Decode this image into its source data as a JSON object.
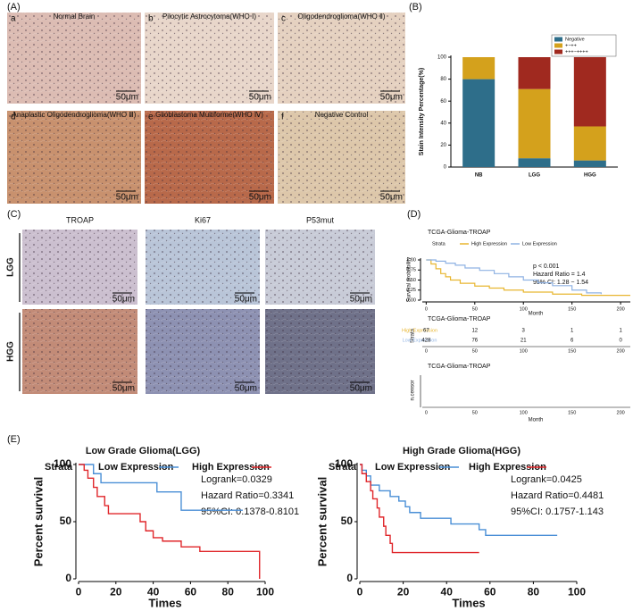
{
  "panel_labels": [
    "(A)",
    "(B)",
    "(C)",
    "(D)",
    "(E)"
  ],
  "panel_a": [
    {
      "letter": "a",
      "title": "Normal Brain",
      "scale": "50μm"
    },
    {
      "letter": "b",
      "title": "Pilocytic Astrocytoma(WHO Ⅰ)",
      "scale": "50μm"
    },
    {
      "letter": "c",
      "title": "Oligodendroglioma(WHO Ⅱ)",
      "scale": "50μm"
    },
    {
      "letter": "d",
      "title": "Anaplastic Oligodendroglioma(WHO Ⅲ)",
      "scale": "50μm"
    },
    {
      "letter": "e",
      "title": "Glioblastoma Multiforme(WHO Ⅳ)",
      "scale": "50μm"
    },
    {
      "letter": "f",
      "title": "Negative Control",
      "scale": "50μm"
    }
  ],
  "panel_c": {
    "columns": [
      "TROAP",
      "Ki67",
      "P53mut"
    ],
    "rows": [
      "LGG",
      "HGG"
    ],
    "scales": [
      [
        "50μm",
        "50μm",
        "50μm"
      ],
      [
        "50μm",
        "50μm",
        "50μm"
      ]
    ]
  },
  "chart_data": [
    {
      "type": "stacked_bar",
      "ylabel": "Stain Intensity Percentage(%)",
      "categories": [
        "NB",
        "LGG",
        "HGG"
      ],
      "series": [
        {
          "name": "Negative",
          "color": "#2e6e8a",
          "values": [
            80,
            8,
            6
          ]
        },
        {
          "name": "+~++",
          "color": "#d4a11c",
          "values": [
            20,
            63,
            31
          ]
        },
        {
          "name": "+++~++++",
          "color": "#a0291f",
          "values": [
            0,
            29,
            63
          ]
        }
      ],
      "ylim": [
        0,
        100
      ],
      "yticks": [
        0,
        20,
        40,
        60,
        80,
        100
      ]
    },
    {
      "type": "km",
      "title": "TCGA-Glioma-TROAP",
      "xlabel": "Month",
      "ylabel": "Survival probability",
      "legend_title": "Strata",
      "annotations": [
        "p < 0.001",
        "Hazard Ratio = 1.4",
        "95% CI: 1.28 − 1.54"
      ],
      "series": [
        {
          "name": "High Expression",
          "color": "#e8b630",
          "x": [
            0,
            5,
            10,
            15,
            20,
            25,
            35,
            50,
            65,
            80,
            100,
            130,
            160,
            210
          ],
          "values": [
            1,
            0.9,
            0.78,
            0.66,
            0.58,
            0.5,
            0.42,
            0.35,
            0.3,
            0.25,
            0.2,
            0.15,
            0.12,
            0.12
          ]
        },
        {
          "name": "Low Expression",
          "color": "#8fb2e3",
          "x": [
            0,
            10,
            20,
            30,
            40,
            55,
            70,
            85,
            100,
            115,
            130,
            150,
            165,
            180
          ],
          "values": [
            1,
            0.97,
            0.92,
            0.87,
            0.8,
            0.74,
            0.66,
            0.58,
            0.5,
            0.43,
            0.36,
            0.25,
            0.18,
            0.15
          ]
        }
      ],
      "xlim": [
        -4,
        210
      ],
      "xticks": [
        0,
        50,
        100,
        150,
        200
      ],
      "ylim": [
        0,
        1
      ],
      "yticks": [
        {
          "value": 0,
          "label": "0.00"
        },
        {
          "value": 0.25,
          "label": "0.25"
        },
        {
          "value": 0.5,
          "label": "0.50"
        },
        {
          "value": 0.75,
          "label": "0.75"
        },
        {
          "value": 1,
          "label": "1.00"
        }
      ],
      "risk_table": {
        "title": "TCGA-Glioma-TROAP",
        "ylabel": "Strata",
        "rows": [
          {
            "name": "High Expression",
            "color": "#e8b630",
            "counts": [
              67,
              12,
              3,
              1,
              1
            ]
          },
          {
            "name": "Low Expression",
            "color": "#8fb2e3",
            "counts": [
              428,
              76,
              21,
              6,
              0
            ]
          }
        ]
      },
      "censor_panel": {
        "title": "TCGA-Glioma-TROAP",
        "ylabel": "n.censor",
        "xlabel": "Month"
      }
    },
    {
      "type": "km",
      "title": "Low Grade Glioma(LGG)",
      "xlabel": "Times",
      "ylabel": "Percent survival",
      "legend_title": "Strata",
      "annotations": [
        "Logrank=0.0329",
        "Hazard Ratio=0.3341",
        "95%CI: 0.1378-0.8101"
      ],
      "series": [
        {
          "name": "Low Expression",
          "color": "#4a8fd6",
          "x": [
            0,
            8,
            12,
            42,
            55,
            88
          ],
          "values": [
            100,
            92,
            84,
            76,
            60,
            60
          ]
        },
        {
          "name": "High Expression",
          "color": "#e0262a",
          "x": [
            0,
            3,
            5,
            8,
            10,
            14,
            16,
            33,
            36,
            40,
            45,
            55,
            65,
            97
          ],
          "values": [
            100,
            95,
            88,
            80,
            72,
            64,
            57,
            50,
            42,
            36,
            33,
            28,
            24,
            0
          ]
        }
      ],
      "xlim": [
        0,
        100
      ],
      "xticks": [
        0,
        20,
        40,
        60,
        80,
        100
      ],
      "ylim": [
        0,
        100
      ],
      "yticks": [
        0,
        50,
        100
      ]
    },
    {
      "type": "km",
      "title": "High Grade Glioma(HGG)",
      "xlabel": "Times",
      "ylabel": "Percent survival",
      "legend_title": "Strata",
      "annotations": [
        "Logrank=0.0425",
        "Hazard Ratio=0.4481",
        "95%CI: 0.1757-1.143"
      ],
      "series": [
        {
          "name": "Low Expression",
          "color": "#4a8fd6",
          "x": [
            0,
            1,
            3,
            5,
            9,
            14,
            18,
            21,
            23,
            28,
            42,
            55,
            58,
            91
          ],
          "values": [
            100,
            95,
            90,
            82,
            77,
            72,
            68,
            63,
            58,
            53,
            48,
            43,
            38,
            38
          ]
        },
        {
          "name": "High Expression",
          "color": "#e0262a",
          "x": [
            0,
            1,
            3,
            5,
            6,
            8,
            9,
            11,
            12,
            14,
            15,
            55
          ],
          "values": [
            100,
            92,
            85,
            77,
            70,
            62,
            54,
            46,
            38,
            31,
            23,
            23
          ]
        }
      ],
      "xlim": [
        0,
        100
      ],
      "xticks": [
        0,
        20,
        40,
        60,
        80,
        100
      ],
      "ylim": [
        0,
        100
      ],
      "yticks": [
        0,
        50,
        100
      ]
    }
  ]
}
